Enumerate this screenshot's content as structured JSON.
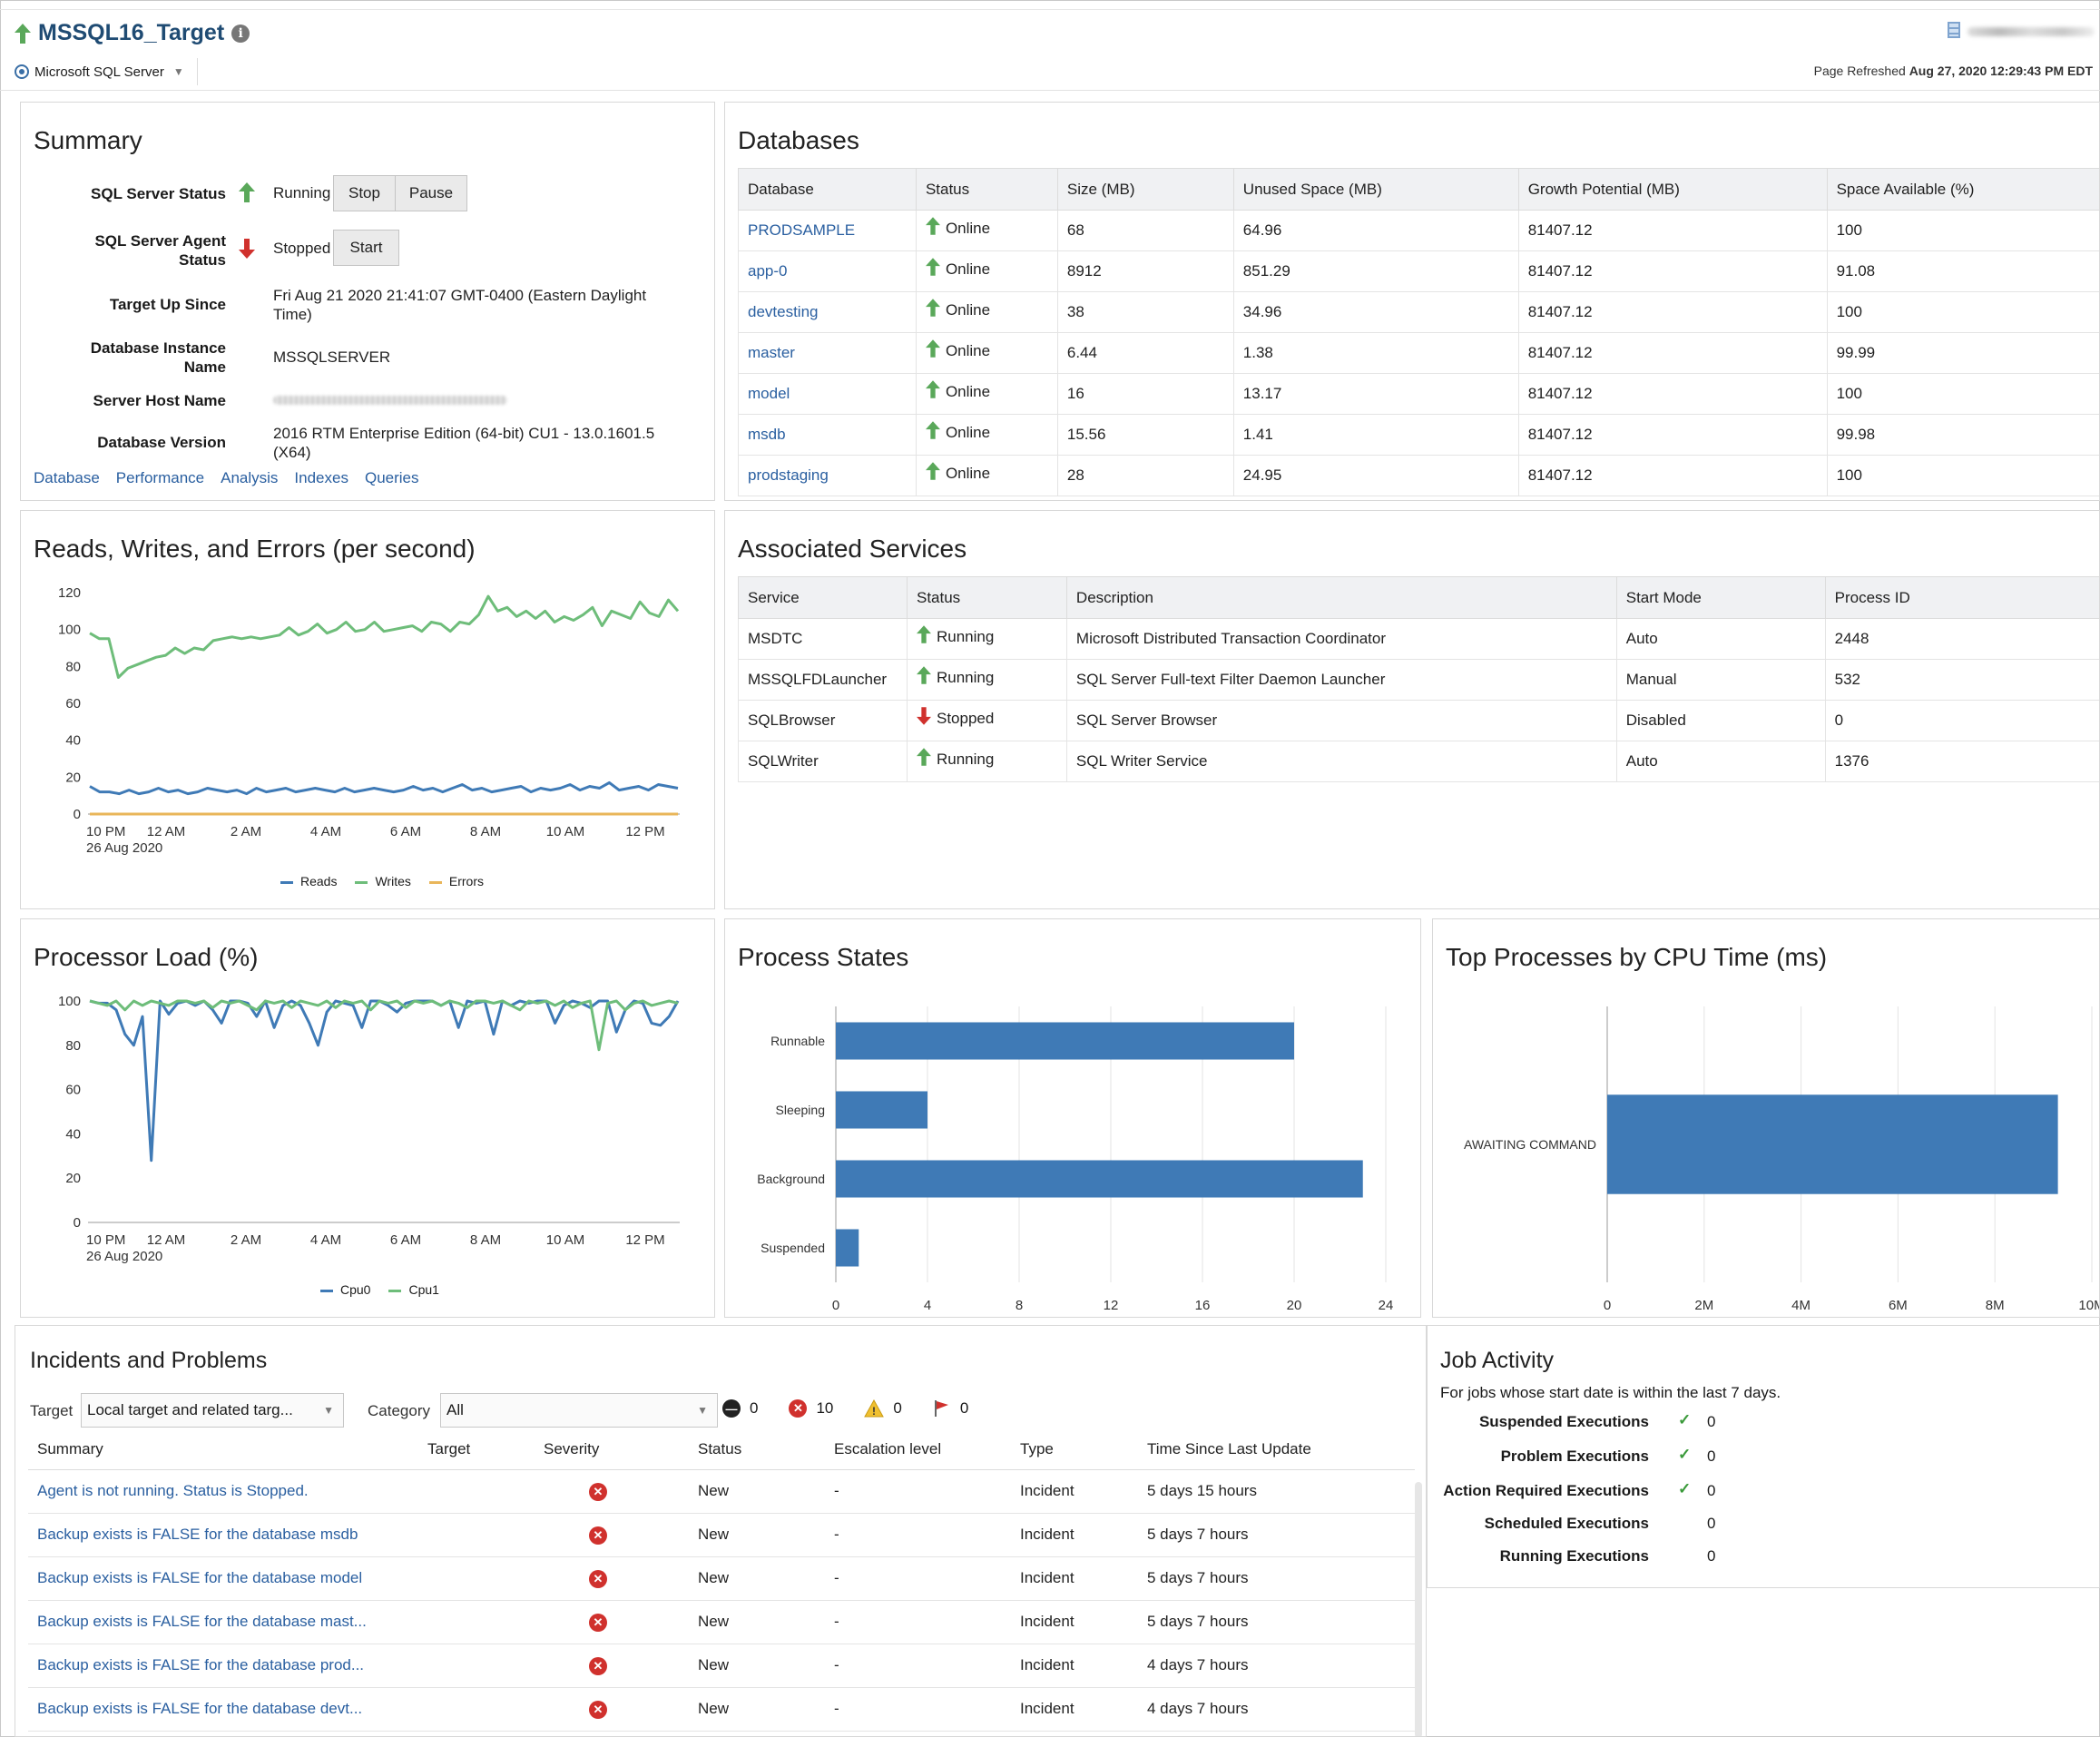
{
  "header": {
    "title": "MSSQL16_Target",
    "target_type": "Microsoft SQL Server",
    "refresh_label": "Page Refreshed",
    "refresh_time": "Aug 27, 2020 12:29:43 PM EDT"
  },
  "summary": {
    "title": "Summary",
    "status_label": "SQL Server Status",
    "status_value": "Running",
    "stop": "Stop",
    "pause": "Pause",
    "agent_label_1": "SQL Server Agent",
    "agent_label_2": "Status",
    "agent_value": "Stopped",
    "start": "Start",
    "up_since_label": "Target Up Since",
    "up_since_1": "Fri Aug 21 2020 21:41:07 GMT-0400 (Eastern Daylight",
    "up_since_2": "Time)",
    "instance_label_1": "Database Instance",
    "instance_label_2": "Name",
    "instance_value": "MSSQLSERVER",
    "host_label": "Server Host Name",
    "version_label": "Database Version",
    "version_1": "2016 RTM Enterprise Edition (64-bit) CU1 - 13.0.1601.5",
    "version_2": "(X64)",
    "links": [
      "Database",
      "Performance",
      "Analysis",
      "Indexes",
      "Queries"
    ]
  },
  "databases": {
    "title": "Databases",
    "columns": [
      "Database",
      "Status",
      "Size (MB)",
      "Unused Space (MB)",
      "Growth Potential (MB)",
      "Space Available (%)"
    ],
    "rows": [
      [
        "PRODSAMPLE",
        "Online",
        "68",
        "64.96",
        "81407.12",
        "100"
      ],
      [
        "app-0",
        "Online",
        "8912",
        "851.29",
        "81407.12",
        "91.08"
      ],
      [
        "devtesting",
        "Online",
        "38",
        "34.96",
        "81407.12",
        "100"
      ],
      [
        "master",
        "Online",
        "6.44",
        "1.38",
        "81407.12",
        "99.99"
      ],
      [
        "model",
        "Online",
        "16",
        "13.17",
        "81407.12",
        "100"
      ],
      [
        "msdb",
        "Online",
        "15.56",
        "1.41",
        "81407.12",
        "99.98"
      ],
      [
        "prodstaging",
        "Online",
        "28",
        "24.95",
        "81407.12",
        "100"
      ]
    ]
  },
  "services": {
    "title": "Associated Services",
    "columns": [
      "Service",
      "Status",
      "Description",
      "Start Mode",
      "Process ID"
    ],
    "rows": [
      [
        "MSDTC",
        "Running",
        "Microsoft Distributed Transaction Coordinator",
        "Auto",
        "2448"
      ],
      [
        "MSSQLFDLauncher",
        "Running",
        "SQL Server Full-text Filter Daemon Launcher",
        "Manual",
        "532"
      ],
      [
        "SQLBrowser",
        "Stopped",
        "SQL Server Browser",
        "Disabled",
        "0"
      ],
      [
        "SQLWriter",
        "Running",
        "SQL Writer Service",
        "Auto",
        "1376"
      ]
    ]
  },
  "incidents": {
    "title": "Incidents and Problems",
    "target_label": "Target",
    "target_value": "Local target and related targ...",
    "category_label": "Category",
    "category_value": "All",
    "count_blocked": "0",
    "count_critical": "10",
    "count_warning": "0",
    "count_flag": "0",
    "columns": [
      "Summary",
      "Target",
      "Severity",
      "Status",
      "Escalation level",
      "Type",
      "Time Since Last Update"
    ],
    "rows": [
      [
        "Agent is not running. Status is Stopped.",
        "New",
        "-",
        "Incident",
        "5 days 15 hours"
      ],
      [
        "Backup exists is FALSE for the database msdb",
        "New",
        "-",
        "Incident",
        "5 days 7 hours"
      ],
      [
        "Backup exists is FALSE for the database model",
        "New",
        "-",
        "Incident",
        "5 days 7 hours"
      ],
      [
        "Backup exists is FALSE for the database mast...",
        "New",
        "-",
        "Incident",
        "5 days 7 hours"
      ],
      [
        "Backup exists is FALSE for the database prod...",
        "New",
        "-",
        "Incident",
        "4 days 7 hours"
      ],
      [
        "Backup exists is FALSE for the database devt...",
        "New",
        "-",
        "Incident",
        "4 days 7 hours"
      ]
    ]
  },
  "jobs": {
    "title": "Job Activity",
    "note": "For jobs whose start date is within the last 7 days.",
    "items": [
      {
        "label": "Suspended Executions",
        "value": "0"
      },
      {
        "label": "Problem Executions",
        "value": "0"
      },
      {
        "label": "Action Required Executions",
        "value": "0"
      },
      {
        "label": "Scheduled Executions",
        "value": "0"
      },
      {
        "label": "Running Executions",
        "value": "0"
      }
    ]
  },
  "colors": {
    "blue": "#3f7ab6",
    "green": "#6ebd7a",
    "orange": "#e9b65a",
    "link": "#2a5fa0"
  },
  "chart_data": [
    {
      "type": "line",
      "title": "Reads, Writes, and Errors (per second)",
      "x_ticks": [
        "10 PM",
        "12 AM",
        "2 AM",
        "4 AM",
        "6 AM",
        "8 AM",
        "10 AM",
        "12 PM"
      ],
      "x_sublabel": "26 Aug 2020",
      "ylim": [
        0,
        120
      ],
      "y_ticks": [
        0,
        20,
        40,
        60,
        80,
        100,
        120
      ],
      "series": [
        {
          "name": "Reads",
          "color": "#3f7ab6",
          "values": [
            15,
            12,
            12,
            11,
            13,
            11,
            12,
            14,
            12,
            13,
            11,
            12,
            14,
            13,
            12,
            13,
            11,
            14,
            12,
            13,
            14,
            12,
            13,
            14,
            13,
            12,
            14,
            12,
            13,
            14,
            13,
            12,
            13,
            15,
            13,
            14,
            12,
            14,
            16,
            13,
            14,
            12,
            13,
            14,
            15,
            12,
            14,
            13,
            14,
            16,
            13,
            15,
            14,
            17,
            13,
            14,
            15,
            13,
            16,
            15,
            14
          ]
        },
        {
          "name": "Writes",
          "color": "#6ebd7a",
          "values": [
            98,
            95,
            95,
            74,
            79,
            81,
            83,
            85,
            86,
            90,
            87,
            90,
            89,
            94,
            95,
            96,
            95,
            96,
            95,
            96,
            97,
            101,
            97,
            99,
            103,
            98,
            100,
            104,
            99,
            100,
            104,
            99,
            100,
            101,
            102,
            99,
            104,
            103,
            99,
            104,
            103,
            108,
            118,
            110,
            112,
            107,
            110,
            106,
            110,
            104,
            107,
            105,
            108,
            112,
            102,
            110,
            108,
            106,
            115,
            109,
            107,
            116,
            110
          ]
        },
        {
          "name": "Errors",
          "color": "#e9b65a",
          "values": [
            0,
            0
          ]
        }
      ]
    },
    {
      "type": "line",
      "title": "Processor Load (%)",
      "x_ticks": [
        "10 PM",
        "12 AM",
        "2 AM",
        "4 AM",
        "6 AM",
        "8 AM",
        "10 AM",
        "12 PM"
      ],
      "x_sublabel": "26 Aug 2020",
      "ylim": [
        0,
        100
      ],
      "y_ticks": [
        0,
        20,
        40,
        60,
        80,
        100
      ],
      "series": [
        {
          "name": "Cpu0",
          "color": "#3f7ab6",
          "values": [
            100,
            99,
            99,
            96,
            85,
            80,
            93,
            28,
            100,
            94,
            99,
            100,
            98,
            100,
            96,
            90,
            100,
            100,
            99,
            93,
            100,
            88,
            98,
            100,
            98,
            90,
            80,
            95,
            100,
            99,
            98,
            88,
            100,
            100,
            98,
            95,
            99,
            100,
            100,
            100,
            98,
            100,
            88,
            100,
            99,
            100,
            85,
            100,
            98,
            100,
            99,
            100,
            100,
            90,
            98,
            100,
            99,
            97,
            100,
            100,
            86,
            96,
            100,
            99,
            90,
            89,
            93,
            100
          ]
        },
        {
          "name": "Cpu1",
          "color": "#6ebd7a",
          "values": [
            100,
            99,
            98,
            100,
            96,
            100,
            98,
            100,
            99,
            98,
            100,
            100,
            99,
            100,
            97,
            100,
            99,
            100,
            98,
            96,
            100,
            99,
            100,
            97,
            100,
            99,
            98,
            100,
            97,
            100,
            99,
            100,
            96,
            100,
            99,
            100,
            97,
            100,
            99,
            100,
            98,
            100,
            99,
            97,
            100,
            100,
            99,
            100,
            98,
            96,
            100,
            99,
            100,
            98,
            100,
            97,
            99,
            100,
            78,
            99,
            100,
            96,
            99,
            100,
            98,
            99,
            100,
            99
          ]
        }
      ]
    },
    {
      "type": "bar",
      "orientation": "horizontal",
      "title": "Process States",
      "categories": [
        "Runnable",
        "Sleeping",
        "Background",
        "Suspended"
      ],
      "values": [
        20,
        4,
        23,
        1
      ],
      "xlim": [
        0,
        24
      ],
      "x_ticks": [
        "0",
        "4",
        "8",
        "12",
        "16",
        "20",
        "24"
      ]
    },
    {
      "type": "bar",
      "orientation": "horizontal",
      "title": "Top Processes by CPU Time (ms)",
      "categories": [
        "AWAITING COMMAND"
      ],
      "values": [
        9300000
      ],
      "xlim": [
        0,
        10000000
      ],
      "x_ticks": [
        "0",
        "2M",
        "4M",
        "6M",
        "8M",
        "10M"
      ]
    }
  ]
}
